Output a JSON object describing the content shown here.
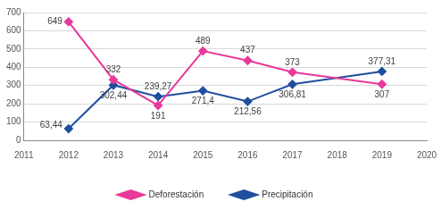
{
  "chart_data": {
    "type": "line",
    "x": [
      2012,
      2013,
      2014,
      2015,
      2016,
      2017,
      2019
    ],
    "series": [
      {
        "name": "Deforestación",
        "color": "#e8399a",
        "marker": "diamond",
        "line_style": "solid",
        "values": [
          649,
          332,
          191,
          489,
          437,
          373,
          307
        ]
      },
      {
        "name": "Precipitación",
        "color": "#1f4e9e",
        "marker": "diamond",
        "line_style": "solid",
        "values": [
          63.44,
          302.44,
          239.27,
          271.4,
          212.56,
          306.81,
          377.31
        ],
        "value_labels": [
          "63,44",
          "302,44",
          "239,27",
          "271,4",
          "212,56",
          "306,81",
          "377,31"
        ]
      }
    ],
    "xlim": [
      2011,
      2020
    ],
    "xticks": [
      2011,
      2012,
      2013,
      2014,
      2015,
      2016,
      2017,
      2018,
      2019,
      2020
    ],
    "ylim": [
      0,
      700
    ],
    "yticks": [
      0,
      100,
      200,
      300,
      400,
      500,
      600,
      700
    ],
    "grid": true,
    "legend": "bottom",
    "data_labels": true
  }
}
